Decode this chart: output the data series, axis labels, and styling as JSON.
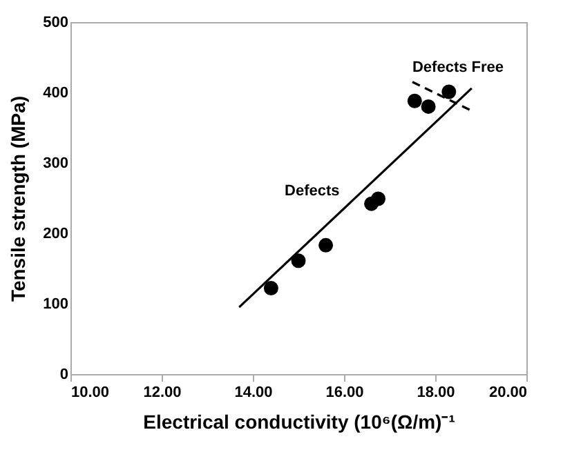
{
  "chart_data": {
    "type": "scatter",
    "xlabel": "Electrical conductivity (10⁶(Ω/m)⁻¹",
    "ylabel": "Tensile strength (MPa)",
    "xlim": [
      10,
      20
    ],
    "xticks": [
      {
        "value": 10,
        "label": "10.00"
      },
      {
        "value": 12,
        "label": "12.00"
      },
      {
        "value": 14,
        "label": "14.00"
      },
      {
        "value": 16,
        "label": "16.00"
      },
      {
        "value": 18,
        "label": "18.00"
      },
      {
        "value": 20,
        "label": "20.00"
      }
    ],
    "ylim": [
      0,
      500
    ],
    "yticks": [
      0,
      100,
      200,
      300,
      400,
      500
    ],
    "series": [
      {
        "marker": "circle",
        "color": "#000000",
        "x": [
          14.4,
          15.0,
          15.6,
          16.6,
          16.75,
          17.55,
          17.85,
          18.3
        ],
        "values": [
          122,
          161,
          183,
          242,
          249,
          388,
          380,
          401
        ]
      },
      {
        "type": "line",
        "color": "#000000",
        "line_style": "solid",
        "x": [
          13.7,
          18.8
        ],
        "values": [
          95,
          406
        ]
      },
      {
        "type": "line",
        "color": "#000000",
        "line_style": "dashed",
        "x": [
          17.5,
          18.8
        ],
        "values": [
          415,
          374
        ]
      }
    ],
    "annotations": [
      "Defects",
      "Defects Free"
    ]
  }
}
